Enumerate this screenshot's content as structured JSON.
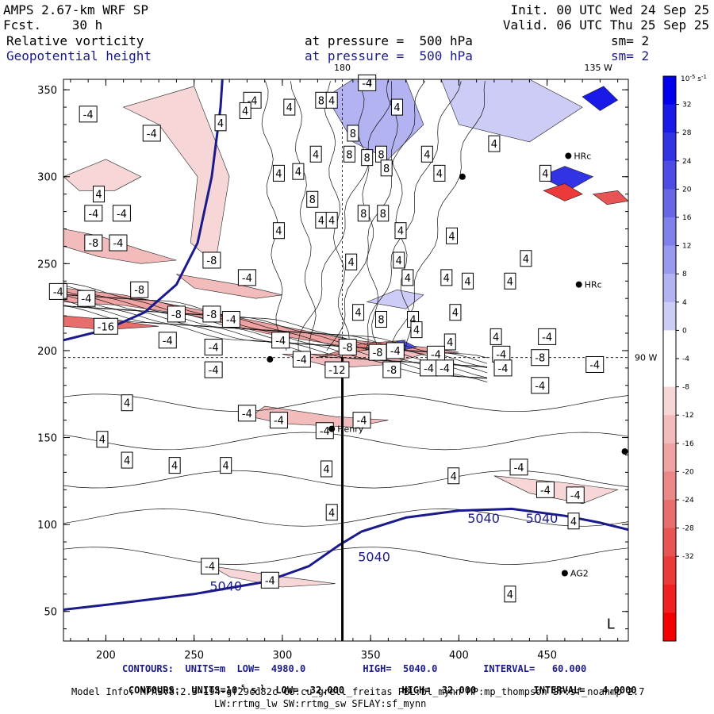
{
  "header": {
    "model": "AMPS 2.67-km WRF SP",
    "fcst": "Fcst.    30 h",
    "init": "Init. 00 UTC Wed 24 Sep 25",
    "valid": "Valid. 06 UTC Thu 25 Sep 25",
    "field1_name": "Relative vorticity",
    "field1_level": "at pressure =  500 hPa",
    "field1_sm": "sm= 2",
    "field2_name": "Geopotential height",
    "field2_level": "at pressure =  500 hPa",
    "field2_sm": "sm= 2"
  },
  "footer": {
    "line1": "CONTOURS:  UNITS=m  LOW=  4980.0          HIGH=  5040.0        INTERVAL=   60.000",
    "line2a": "CONTOURS:  UNITS=10",
    "line2exp": "-5",
    "line2b": " s",
    "line2exp2": "-1",
    "line2c": "  LOW= -32.000          HIGH=  32.000          INTERVAL=   4.0000",
    "line3": "Model Info: MPASv8.2.3-194-gf29cd82c CU:cu_grell_freitas PBL:bl_mynn MP:mp_thompson SF:sf_noahmp 2.7",
    "line4": "LW:rrtmg_lw SW:rrtmg_sw SFLAY:sf_mynn"
  },
  "colors": {
    "positive": "#1f2fe0",
    "negative": "#f02020",
    "height_contour": "#1a1a8c"
  },
  "chart_data": {
    "type": "heatmap",
    "title": "Relative vorticity and Geopotential height at 500 hPa",
    "xlim": [
      176,
      496
    ],
    "ylim": [
      33,
      356
    ],
    "xticks": [
      200,
      250,
      300,
      350,
      400,
      450
    ],
    "yticks": [
      50,
      100,
      150,
      200,
      250,
      300,
      350
    ],
    "top_labels": [
      {
        "text": "180",
        "x": 334
      },
      {
        "text": "135 W",
        "x": 479
      }
    ],
    "right_labels": [
      {
        "text": "90 W",
        "y": 196
      }
    ],
    "meridian_x": 334,
    "parallel_y": 196,
    "colorbar": {
      "unit_base": "10",
      "unit_exp": "-5",
      "unit_s": " s",
      "unit_exp2": "-1",
      "levels": [
        32,
        28,
        24,
        20,
        16,
        12,
        8,
        4,
        0,
        -4,
        -8,
        -12,
        -16,
        -20,
        -24,
        -28,
        -32
      ],
      "blue_fills": [
        "#0000ee",
        "#1a1ae8",
        "#3333e6",
        "#4d4de6",
        "#6666e6",
        "#8080ea",
        "#9999ee",
        "#b3b3f2",
        "#ccccf6"
      ],
      "red_fills": [
        "#f6d6d6",
        "#f2bcbc",
        "#eea2a2",
        "#ea8888",
        "#e86e6e",
        "#e85454",
        "#ec3a3a",
        "#f02020",
        "#f40000"
      ]
    },
    "height_contours": [
      {
        "value": "5040",
        "points": [
          [
            176,
            206
          ],
          [
            200,
            212
          ],
          [
            222,
            222
          ],
          [
            240,
            238
          ],
          [
            252,
            262
          ],
          [
            260,
            300
          ],
          [
            265,
            340
          ],
          [
            266,
            356
          ]
        ]
      },
      {
        "value": "5040",
        "points": [
          [
            176,
            51
          ],
          [
            210,
            55
          ],
          [
            250,
            60
          ],
          [
            290,
            67
          ],
          [
            315,
            76
          ],
          [
            332,
            88
          ],
          [
            345,
            96
          ],
          [
            370,
            104
          ],
          [
            400,
            108
          ],
          [
            430,
            109
          ],
          [
            460,
            105
          ],
          [
            480,
            101
          ],
          [
            496,
            97
          ]
        ]
      }
    ],
    "height_labels": [
      {
        "text": "5040",
        "x": 268,
        "y": 64
      },
      {
        "text": "5040",
        "x": 352,
        "y": 81
      },
      {
        "text": "5040",
        "x": 414,
        "y": 103
      },
      {
        "text": "5040",
        "x": 447,
        "y": 103
      }
    ],
    "stations": [
      {
        "name": "Henry",
        "x": 328,
        "y": 155
      },
      {
        "name": "AG2",
        "x": 460,
        "y": 72
      },
      {
        "name": "HRc",
        "x": 468,
        "y": 238
      },
      {
        "name": "HRc",
        "x": 462,
        "y": 312
      },
      {
        "name": "",
        "x": 293,
        "y": 195
      },
      {
        "name": "",
        "x": 494,
        "y": 142
      },
      {
        "name": "",
        "x": 402,
        "y": 300
      }
    ],
    "low_marker": {
      "text": "L",
      "x": 486,
      "y": 40
    },
    "value_labels": [
      {
        "t": "-4",
        "x": 283,
        "y": 344
      },
      {
        "t": "-4",
        "x": 190,
        "y": 336
      },
      {
        "t": "4",
        "x": 265,
        "y": 331
      },
      {
        "t": "4",
        "x": 279,
        "y": 338
      },
      {
        "t": "4",
        "x": 304,
        "y": 340
      },
      {
        "t": "8",
        "x": 322,
        "y": 344
      },
      {
        "t": "4",
        "x": 328,
        "y": 344
      },
      {
        "t": "-4",
        "x": 226,
        "y": 325
      },
      {
        "t": "4",
        "x": 319,
        "y": 313
      },
      {
        "t": "8",
        "x": 340,
        "y": 325
      },
      {
        "t": "8",
        "x": 338,
        "y": 313
      },
      {
        "t": "8",
        "x": 356,
        "y": 313
      },
      {
        "t": "8",
        "x": 348,
        "y": 311
      },
      {
        "t": "8",
        "x": 359,
        "y": 305
      },
      {
        "t": "4",
        "x": 309,
        "y": 303
      },
      {
        "t": "4",
        "x": 298,
        "y": 302
      },
      {
        "t": "4",
        "x": 365,
        "y": 340
      },
      {
        "t": "4",
        "x": 196,
        "y": 290
      },
      {
        "t": "-4",
        "x": 193,
        "y": 279
      },
      {
        "t": "-4",
        "x": 209,
        "y": 279
      },
      {
        "t": "8",
        "x": 317,
        "y": 287
      },
      {
        "t": "4",
        "x": 322,
        "y": 275
      },
      {
        "t": "4",
        "x": 328,
        "y": 275
      },
      {
        "t": "8",
        "x": 346,
        "y": 279
      },
      {
        "t": "8",
        "x": 357,
        "y": 279
      },
      {
        "t": "4",
        "x": 382,
        "y": 313
      },
      {
        "t": "4",
        "x": 389,
        "y": 302
      },
      {
        "t": "4",
        "x": 420,
        "y": 319
      },
      {
        "t": "4",
        "x": 449,
        "y": 302
      },
      {
        "t": "-8",
        "x": 193,
        "y": 262
      },
      {
        "t": "-4",
        "x": 207,
        "y": 262
      },
      {
        "t": "4",
        "x": 298,
        "y": 269
      },
      {
        "t": "4",
        "x": 367,
        "y": 269
      },
      {
        "t": "4",
        "x": 396,
        "y": 266
      },
      {
        "t": "-8",
        "x": 260,
        "y": 252
      },
      {
        "t": "4",
        "x": 339,
        "y": 251
      },
      {
        "t": "4",
        "x": 366,
        "y": 252
      },
      {
        "t": "-4",
        "x": 173,
        "y": 234
      },
      {
        "t": "-8",
        "x": 219,
        "y": 235
      },
      {
        "t": "-4",
        "x": 280,
        "y": 242
      },
      {
        "t": "4",
        "x": 371,
        "y": 242
      },
      {
        "t": "4",
        "x": 393,
        "y": 242
      },
      {
        "t": "4",
        "x": 405,
        "y": 240
      },
      {
        "t": "4",
        "x": 429,
        "y": 240
      },
      {
        "t": "4",
        "x": 438,
        "y": 253
      },
      {
        "t": "-4",
        "x": 189,
        "y": 230
      },
      {
        "t": "-8",
        "x": 240,
        "y": 221
      },
      {
        "t": "-8",
        "x": 260,
        "y": 221
      },
      {
        "t": "4",
        "x": 343,
        "y": 222
      },
      {
        "t": "8",
        "x": 356,
        "y": 218
      },
      {
        "t": "4",
        "x": 374,
        "y": 218
      },
      {
        "t": "4",
        "x": 398,
        "y": 222
      },
      {
        "t": "-16",
        "x": 200,
        "y": 214
      },
      {
        "t": "-4",
        "x": 271,
        "y": 218
      },
      {
        "t": "4",
        "x": 376,
        "y": 212
      },
      {
        "t": "-4",
        "x": 235,
        "y": 206
      },
      {
        "t": "-4",
        "x": 299,
        "y": 206
      },
      {
        "t": "-8",
        "x": 337,
        "y": 202
      },
      {
        "t": "4",
        "x": 395,
        "y": 205
      },
      {
        "t": "4",
        "x": 421,
        "y": 208
      },
      {
        "t": "-4",
        "x": 450,
        "y": 208
      },
      {
        "t": "-4",
        "x": 261,
        "y": 202
      },
      {
        "t": "-4",
        "x": 311,
        "y": 195
      },
      {
        "t": "-8",
        "x": 354,
        "y": 199
      },
      {
        "t": "-4",
        "x": 364,
        "y": 200
      },
      {
        "t": "-4",
        "x": 387,
        "y": 198
      },
      {
        "t": "-4",
        "x": 424,
        "y": 198
      },
      {
        "t": "-8",
        "x": 446,
        "y": 196
      },
      {
        "t": "-4",
        "x": 477,
        "y": 192
      },
      {
        "t": "-4",
        "x": 261,
        "y": 189
      },
      {
        "t": "-12",
        "x": 331,
        "y": 189
      },
      {
        "t": "-8",
        "x": 362,
        "y": 189
      },
      {
        "t": "-4",
        "x": 383,
        "y": 190
      },
      {
        "t": "-4",
        "x": 392,
        "y": 190
      },
      {
        "t": "-4",
        "x": 425,
        "y": 190
      },
      {
        "t": "-4",
        "x": 446,
        "y": 180
      },
      {
        "t": "4",
        "x": 212,
        "y": 170
      },
      {
        "t": "-4",
        "x": 298,
        "y": 160
      },
      {
        "t": "-4",
        "x": 280,
        "y": 164
      },
      {
        "t": "-4",
        "x": 345,
        "y": 160
      },
      {
        "t": "-4",
        "x": 324,
        "y": 154
      },
      {
        "t": "4",
        "x": 198,
        "y": 149
      },
      {
        "t": "4",
        "x": 212,
        "y": 137
      },
      {
        "t": "4",
        "x": 239,
        "y": 134
      },
      {
        "t": "4",
        "x": 268,
        "y": 134
      },
      {
        "t": "4",
        "x": 325,
        "y": 132
      },
      {
        "t": "4",
        "x": 397,
        "y": 128
      },
      {
        "t": "-4",
        "x": 434,
        "y": 133
      },
      {
        "t": "-4",
        "x": 449,
        "y": 120
      },
      {
        "t": "-4",
        "x": 466,
        "y": 117
      },
      {
        "t": "4",
        "x": 328,
        "y": 107
      },
      {
        "t": "4",
        "x": 465,
        "y": 102
      },
      {
        "t": "-4",
        "x": 259,
        "y": 76
      },
      {
        "t": "-4",
        "x": 293,
        "y": 68
      },
      {
        "t": "4",
        "x": 429,
        "y": 60
      },
      {
        "t": "-4",
        "x": 348,
        "y": 354
      }
    ]
  }
}
